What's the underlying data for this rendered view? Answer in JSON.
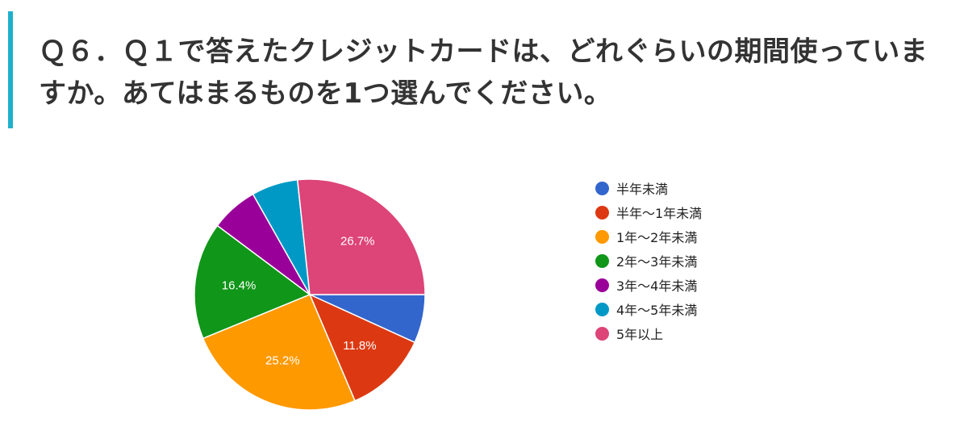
{
  "question": {
    "text": "Ｑ６．Ｑ１で答えたクレジットカードは、どれぐらいの期間使っていますか。あてはまるものを1つ選んでください。"
  },
  "chart_data": {
    "type": "pie",
    "title": "",
    "legend_position": "right",
    "slices": [
      {
        "label": "半年未満",
        "value": 6.8,
        "color": "#3366cc",
        "data_label": ""
      },
      {
        "label": "半年～1年未満",
        "value": 11.8,
        "color": "#dc3912",
        "data_label": "11.8%"
      },
      {
        "label": "1年～2年未満",
        "value": 25.2,
        "color": "#ff9900",
        "data_label": "25.2%"
      },
      {
        "label": "2年～3年未満",
        "value": 16.4,
        "color": "#109618",
        "data_label": "16.4%"
      },
      {
        "label": "3年～4年未満",
        "value": 6.6,
        "color": "#990099",
        "data_label": ""
      },
      {
        "label": "4年～5年未満",
        "value": 6.5,
        "color": "#0099c6",
        "data_label": ""
      },
      {
        "label": "5年以上",
        "value": 26.7,
        "color": "#dd4477",
        "data_label": "26.7%"
      }
    ]
  }
}
